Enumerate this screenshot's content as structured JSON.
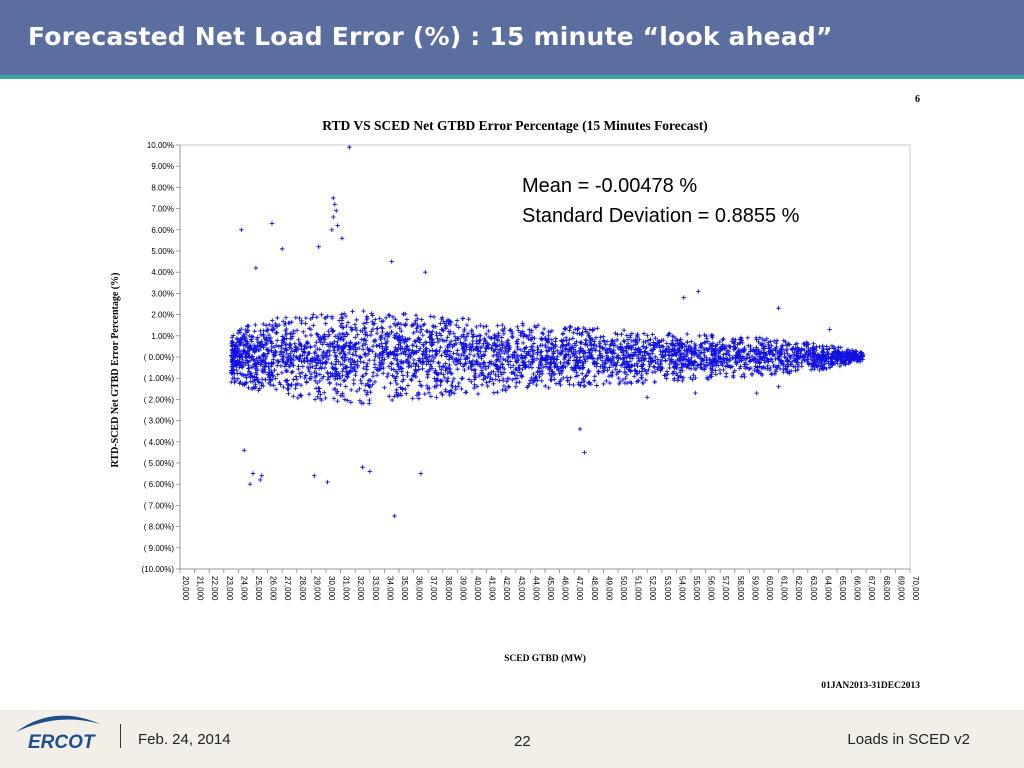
{
  "slide": {
    "title": "Forecasted Net Load Error (%) : 15 minute “look ahead”",
    "corner_number": "6",
    "date_range": "01JAN2013-31DEC2013",
    "annotation_mean": "Mean = -0.00478 %",
    "annotation_std": "Standard Deviation = 0.8855 %"
  },
  "footer": {
    "logo_text": "ERCOT",
    "date": "Feb. 24, 2014",
    "page_number": "22",
    "right_text": "Loads in SCED v2"
  },
  "colors": {
    "header": "#5a6fa0",
    "accent_stripe": "#3aa5a0",
    "points": "#1010e0",
    "footer": "#f1efe8",
    "logo": "#1d4f8c"
  },
  "chart_data": {
    "type": "scatter",
    "title": "RTD VS SCED Net GTBD Error Percentage (15 Minutes Forecast)",
    "xlabel": "SCED GTBD (MW)",
    "ylabel": "RTD-SCED Net GTBD Error Percentage (%)",
    "xlim": [
      20000,
      70000
    ],
    "ylim": [
      -10,
      10
    ],
    "x_ticks": [
      20000,
      21000,
      22000,
      23000,
      24000,
      25000,
      26000,
      27000,
      28000,
      29000,
      30000,
      31000,
      32000,
      33000,
      34000,
      35000,
      36000,
      37000,
      38000,
      39000,
      40000,
      41000,
      42000,
      43000,
      44000,
      45000,
      46000,
      47000,
      48000,
      49000,
      50000,
      51000,
      52000,
      53000,
      54000,
      55000,
      56000,
      57000,
      58000,
      59000,
      60000,
      61000,
      62000,
      63000,
      64000,
      65000,
      66000,
      67000,
      68000,
      69000,
      70000
    ],
    "x_tick_labels": [
      "20,000",
      "21,000",
      "22,000",
      "23,000",
      "24,000",
      "25,000",
      "26,000",
      "27,000",
      "28,000",
      "29,000",
      "30,000",
      "31,000",
      "32,000",
      "33,000",
      "34,000",
      "35,000",
      "36,000",
      "37,000",
      "38,000",
      "39,000",
      "40,000",
      "41,000",
      "42,000",
      "43,000",
      "44,000",
      "45,000",
      "46,000",
      "47,000",
      "48,000",
      "49,000",
      "50,000",
      "51,000",
      "52,000",
      "53,000",
      "54,000",
      "55,000",
      "56,000",
      "57,000",
      "58,000",
      "59,000",
      "60,000",
      "61,000",
      "62,000",
      "63,000",
      "64,000",
      "65,000",
      "66,000",
      "67,000",
      "68,000",
      "69,000",
      "70,000"
    ],
    "y_ticks": [
      10,
      9,
      8,
      7,
      6,
      5,
      4,
      3,
      2,
      1,
      0,
      -1,
      -2,
      -3,
      -4,
      -5,
      -6,
      -7,
      -8,
      -9,
      -10
    ],
    "y_tick_labels": [
      "10.00%",
      "9.00%",
      "8.00%",
      "7.00%",
      "6.00%",
      "5.00%",
      "4.00%",
      "3.00%",
      "2.00%",
      "1.00%",
      "( 0.00%)",
      "( 1.00%)",
      "( 2.00%)",
      "( 3.00%)",
      "( 4.00%)",
      "( 5.00%)",
      "( 6.00%)",
      "( 7.00%)",
      "( 8.00%)",
      "( 9.00%)",
      "(10.00%)"
    ],
    "grid": false,
    "marker": "+",
    "series": [
      {
        "band": [
          {
            "x": 23500,
            "spread": 1.2
          },
          {
            "x": 25000,
            "spread": 1.6
          },
          {
            "x": 27000,
            "spread": 1.9
          },
          {
            "x": 30000,
            "spread": 2.1
          },
          {
            "x": 33000,
            "spread": 2.2
          },
          {
            "x": 36000,
            "spread": 2.0
          },
          {
            "x": 40000,
            "spread": 1.8
          },
          {
            "x": 45000,
            "spread": 1.5
          },
          {
            "x": 50000,
            "spread": 1.3
          },
          {
            "x": 55000,
            "spread": 1.1
          },
          {
            "x": 60000,
            "spread": 0.9
          },
          {
            "x": 63000,
            "spread": 0.7
          },
          {
            "x": 65000,
            "spread": 0.5
          },
          {
            "x": 66800,
            "spread": 0.2
          }
        ],
        "outliers": [
          {
            "x": 31600,
            "y": 9.9
          },
          {
            "x": 24200,
            "y": 6.0
          },
          {
            "x": 26300,
            "y": 6.3
          },
          {
            "x": 27000,
            "y": 5.1
          },
          {
            "x": 30500,
            "y": 7.5
          },
          {
            "x": 30600,
            "y": 7.2
          },
          {
            "x": 30700,
            "y": 6.9
          },
          {
            "x": 30500,
            "y": 6.6
          },
          {
            "x": 30800,
            "y": 6.2
          },
          {
            "x": 30400,
            "y": 6.0
          },
          {
            "x": 31100,
            "y": 5.6
          },
          {
            "x": 29500,
            "y": 5.2
          },
          {
            "x": 25200,
            "y": 4.2
          },
          {
            "x": 36800,
            "y": 4.0
          },
          {
            "x": 34500,
            "y": 4.5
          },
          {
            "x": 54500,
            "y": 2.8
          },
          {
            "x": 55500,
            "y": 3.1
          },
          {
            "x": 61000,
            "y": 2.3
          },
          {
            "x": 64500,
            "y": 1.3
          },
          {
            "x": 34700,
            "y": -7.5
          },
          {
            "x": 25000,
            "y": -5.5
          },
          {
            "x": 25600,
            "y": -5.6
          },
          {
            "x": 24800,
            "y": -6.0
          },
          {
            "x": 25500,
            "y": -5.8
          },
          {
            "x": 24400,
            "y": -4.4
          },
          {
            "x": 29200,
            "y": -5.6
          },
          {
            "x": 30100,
            "y": -5.9
          },
          {
            "x": 32500,
            "y": -5.2
          },
          {
            "x": 33000,
            "y": -5.4
          },
          {
            "x": 36500,
            "y": -5.5
          },
          {
            "x": 47700,
            "y": -4.5
          },
          {
            "x": 47400,
            "y": -3.4
          },
          {
            "x": 52000,
            "y": -1.9
          },
          {
            "x": 55300,
            "y": -1.7
          },
          {
            "x": 59500,
            "y": -1.7
          },
          {
            "x": 61000,
            "y": -1.4
          }
        ]
      }
    ]
  }
}
